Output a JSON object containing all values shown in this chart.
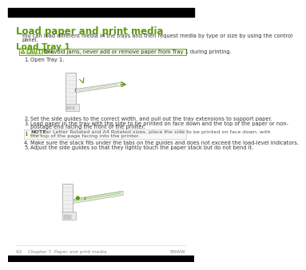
{
  "bg_color": "#ffffff",
  "top_bar_color": "#000000",
  "bottom_bar_color": "#000000",
  "title": "Load paper and print media",
  "title_color": "#5b9a08",
  "title_fontsize": 8.5,
  "body_text_1a": "You can load different media in the trays and then request media by type or size by using the control",
  "body_text_1b": "panel.",
  "section_title": "Load Tray 1",
  "section_title_color": "#5b9a08",
  "section_title_fontsize": 7.5,
  "caution_color": "#5b9a08",
  "caution_bg": "#f0f9e0",
  "caution_border": "#5b9a08",
  "caution_label": "CAUTION:",
  "caution_text": "To avoid jams, never add or remove paper from Tray 1 during printing.",
  "step1_num": "1.",
  "step1_text": "Open Tray 1.",
  "step2_num": "2.",
  "step2_text": "Set the side guides to the correct width, and pull out the tray extensions to support paper.",
  "step3_num": "3.",
  "step3_text_a": "Load paper in the tray with the side to be printed on face down and the top of the paper or non-",
  "step3_text_b": "postage end facing the front of the printer.",
  "note_label": "NOTE:",
  "note_text_a": "For Letter Rotated and A4 Rotated sizes, place the side to be printed on face down, with",
  "note_text_b": "the top of the page facing into the printer.",
  "step4_num": "4.",
  "step4_text": "Make sure the stack fits under the tabs on the guides and does not exceed the load-level indicators.",
  "step5_num": "5.",
  "step5_text": "Adjust the side guides so that they lightly touch the paper stack but do not bend it.",
  "footer_left": "92    Chapter 7  Paper and print media",
  "footer_right": "ENWW",
  "footer_color": "#888888",
  "body_fontsize": 4.8,
  "step_fontsize": 4.8,
  "note_fontsize": 4.6,
  "footer_fontsize": 4.2,
  "text_color": "#333333",
  "note_color": "#555555"
}
